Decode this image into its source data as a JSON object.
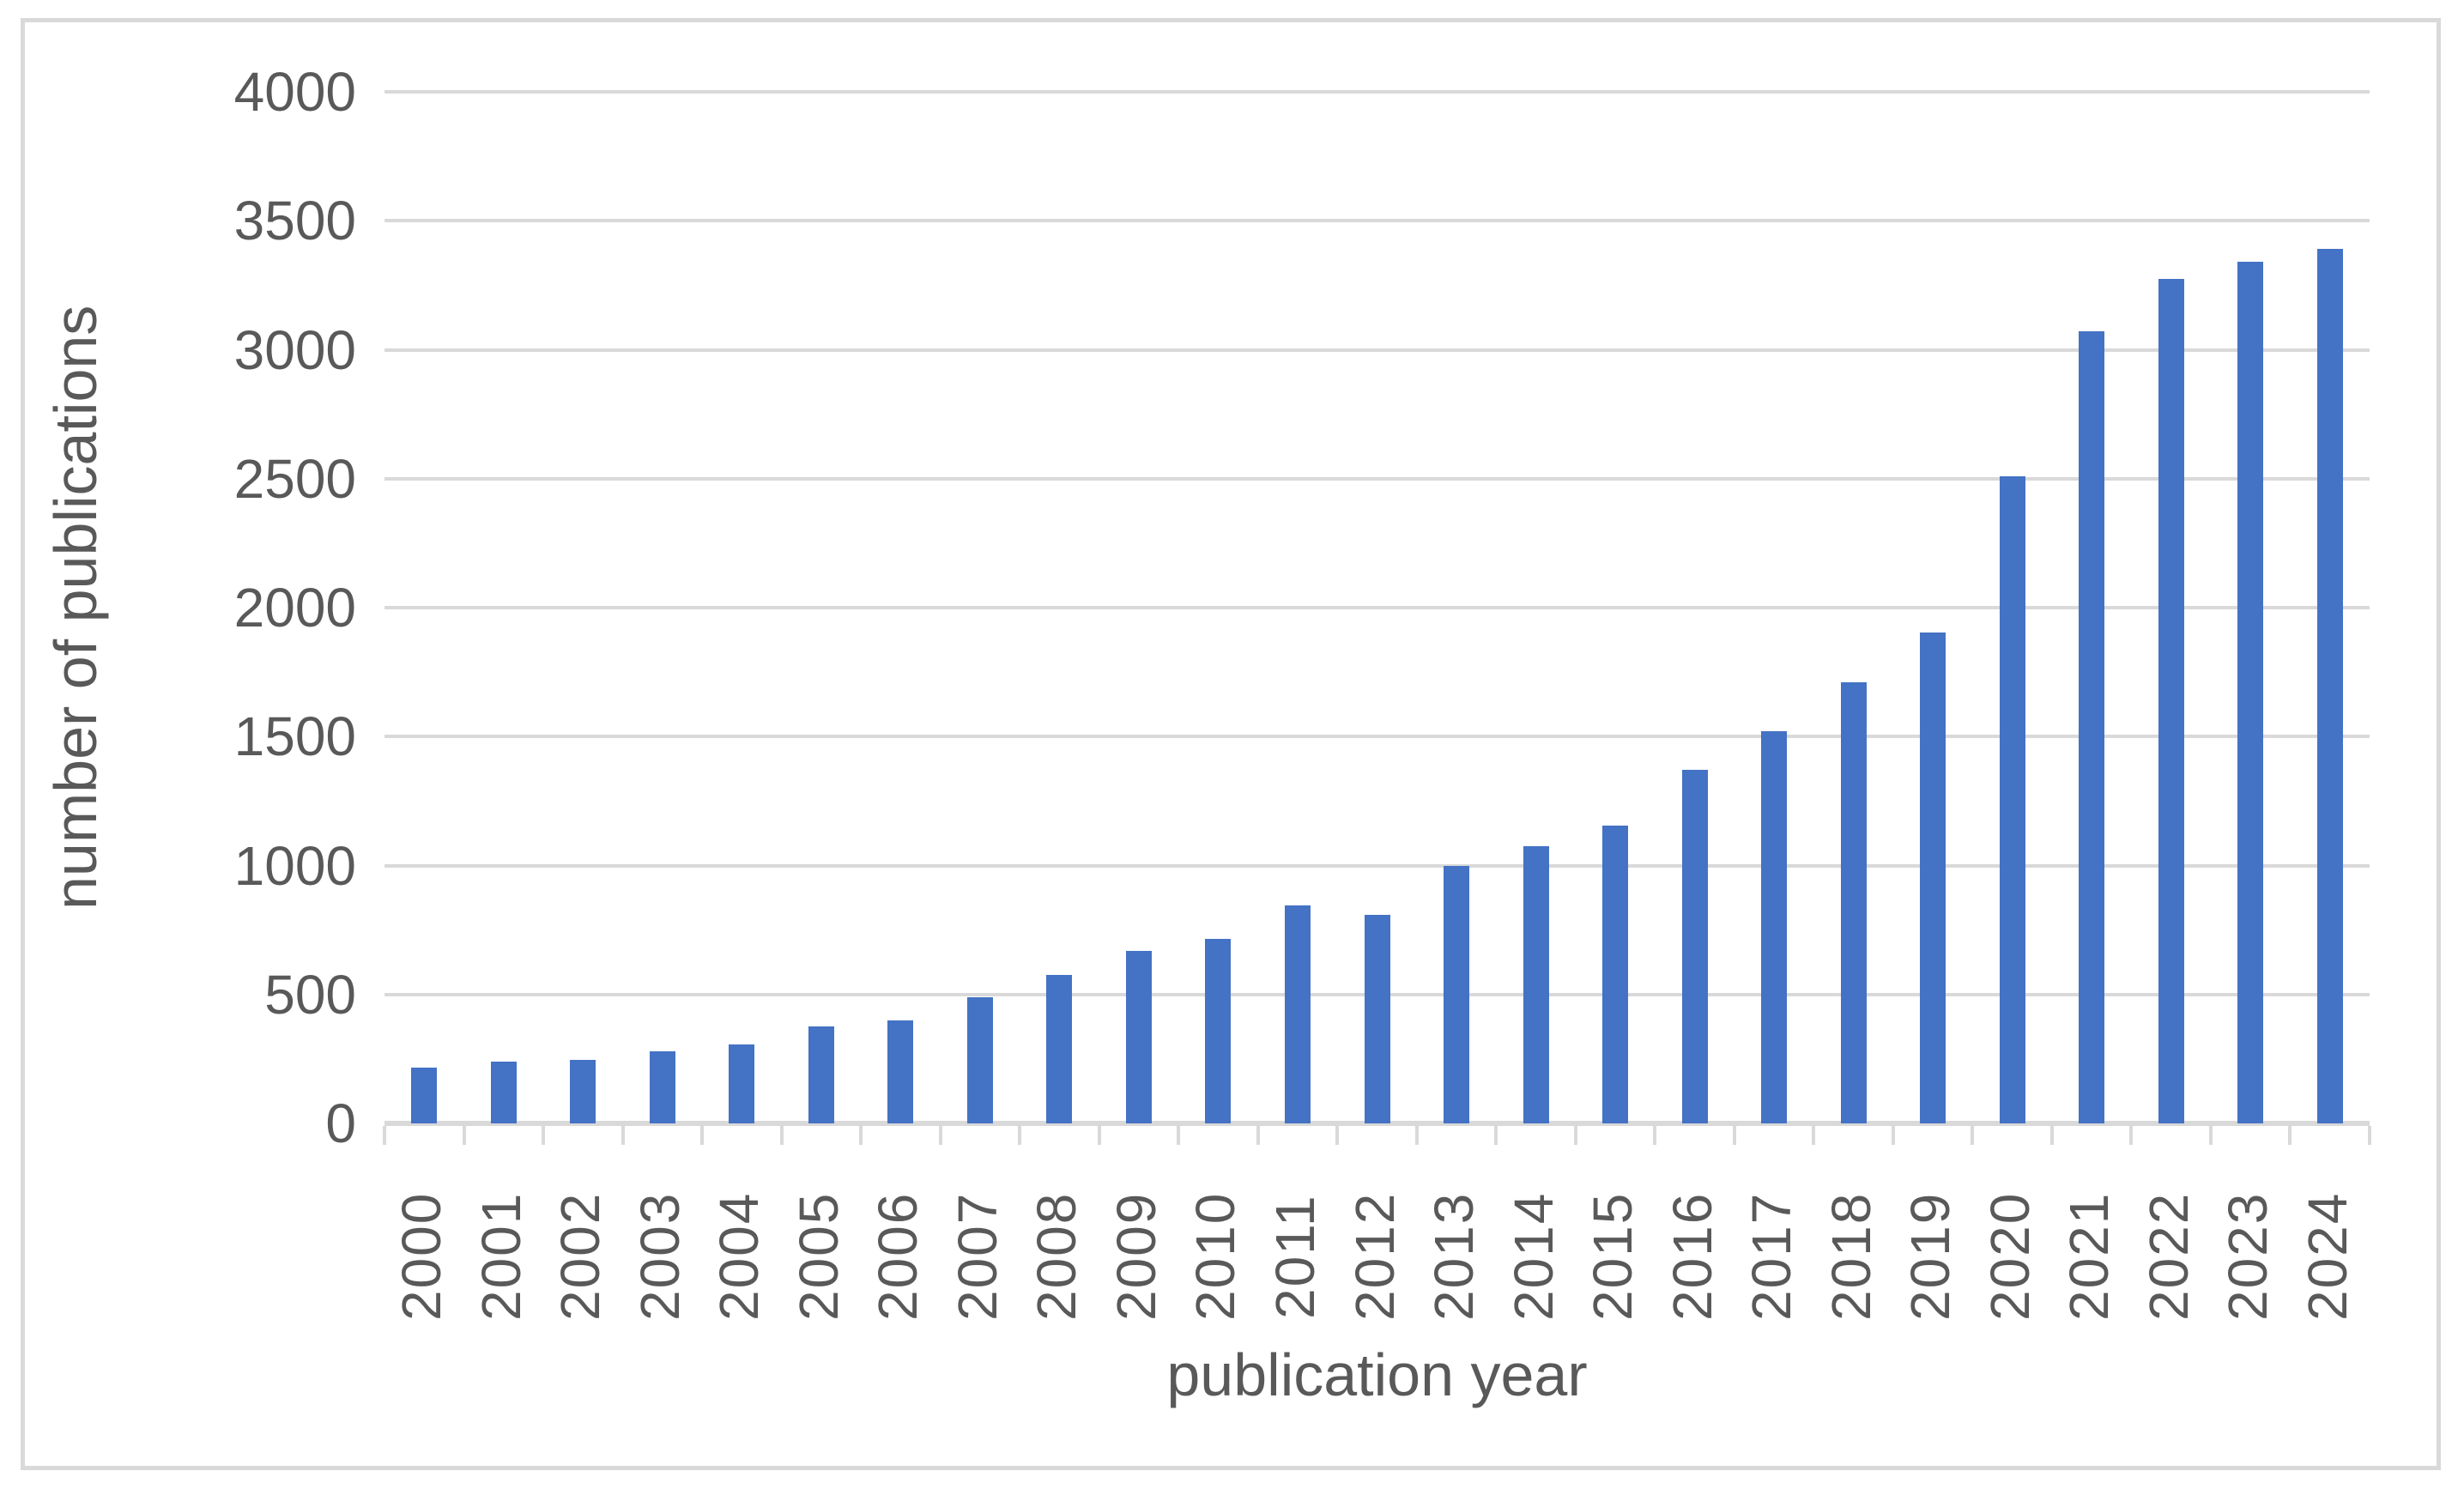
{
  "figure": {
    "background_color": "#ffffff",
    "border_color": "#d9d9d9",
    "gridline_color": "#d9d9d9",
    "axis_line_color": "#d9d9d9",
    "text_color": "#595959",
    "bar_color": "#4472c4"
  },
  "chart_data": {
    "type": "bar",
    "title": "",
    "xlabel": "publication year",
    "ylabel": "number of publications",
    "categories": [
      "2000",
      "2001",
      "2002",
      "2003",
      "2004",
      "2005",
      "2006",
      "2007",
      "2008",
      "2009",
      "2010",
      "2011",
      "2012",
      "2013",
      "2014",
      "2015",
      "2016",
      "2017",
      "2018",
      "2019",
      "2020",
      "2021",
      "2022",
      "2023",
      "2024"
    ],
    "values": [
      215,
      240,
      245,
      280,
      305,
      375,
      400,
      490,
      575,
      670,
      715,
      845,
      810,
      1000,
      1075,
      1155,
      1370,
      1520,
      1710,
      1905,
      2510,
      3070,
      3275,
      3340,
      3390
    ],
    "ylim": [
      0,
      4000
    ],
    "yticks": [
      0,
      500,
      1000,
      1500,
      2000,
      2500,
      3000,
      3500,
      4000
    ],
    "ytick_labels": [
      "0",
      "500",
      "1000",
      "1500",
      "2000",
      "2500",
      "3000",
      "3500",
      "4000"
    ],
    "grid": "horizontal",
    "legend": "none"
  }
}
